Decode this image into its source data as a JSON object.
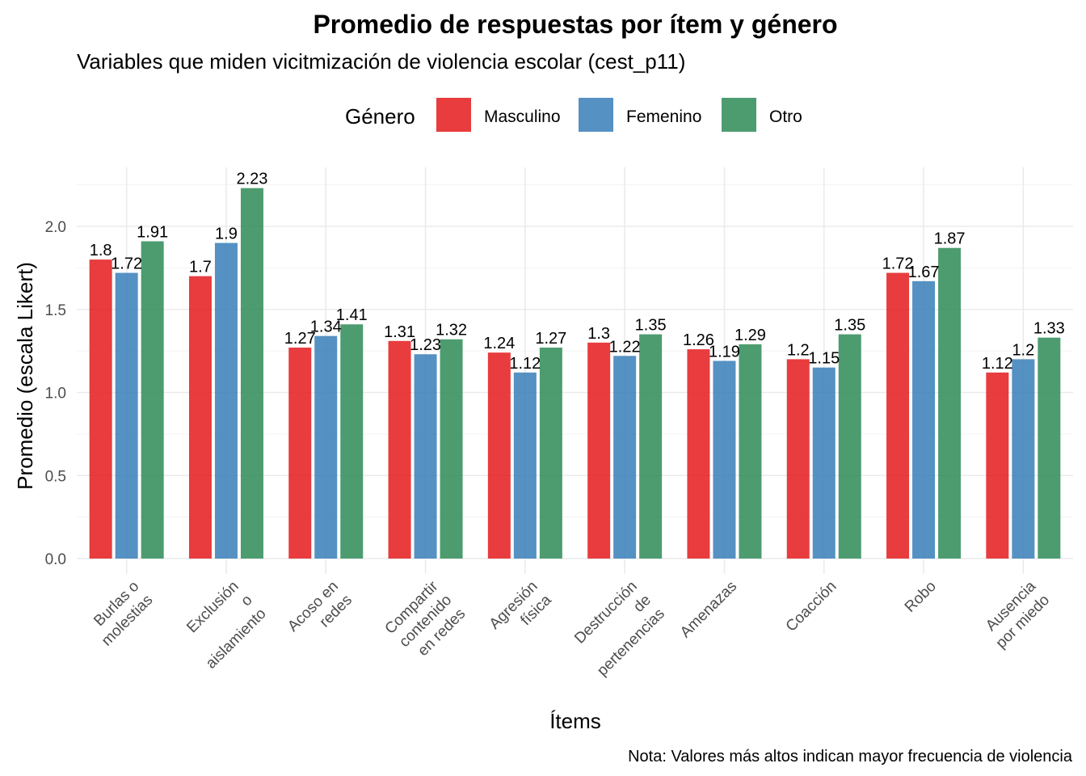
{
  "chart_data": {
    "type": "bar",
    "title": "Promedio de respuestas por ítem y género",
    "subtitle": "Variables que miden vicitmización de violencia escolar (cest_p11)",
    "xlabel": "Ítems",
    "ylabel": "Promedio (escala Likert)",
    "caption": "Nota: Valores más altos indican mayor frecuencia de violencia",
    "legend_title": "Género",
    "legend_position": "top",
    "grid": true,
    "ylim": [
      0,
      2.23
    ],
    "yticks": [
      "0.0",
      "0.5",
      "1.0",
      "1.5",
      "2.0"
    ],
    "ytick_values": [
      0,
      0.5,
      1.0,
      1.5,
      2.0
    ],
    "categories": [
      [
        "Burlas o",
        "molestias"
      ],
      [
        "Exclusión",
        "o",
        "aislamiento"
      ],
      [
        "Acoso en",
        "redes"
      ],
      [
        "Compartir",
        "contenido",
        "en redes"
      ],
      [
        "Agresión",
        "física"
      ],
      [
        "Destrucción",
        "de",
        "pertenencias"
      ],
      [
        "Amenazas"
      ],
      [
        "Coacción"
      ],
      [
        "Robo"
      ],
      [
        "Ausencia",
        "por miedo"
      ]
    ],
    "series": [
      {
        "name": "Masculino",
        "color": "#E41A1C",
        "values": [
          1.8,
          1.7,
          1.27,
          1.31,
          1.24,
          1.3,
          1.26,
          1.2,
          1.72,
          1.12
        ],
        "labels": [
          "1.8",
          "1.7",
          "1.27",
          "1.31",
          "1.24",
          "1.3",
          "1.26",
          "1.2",
          "1.72",
          "1.12"
        ]
      },
      {
        "name": "Femenino",
        "color": "#377EB8",
        "values": [
          1.72,
          1.9,
          1.34,
          1.23,
          1.12,
          1.22,
          1.19,
          1.15,
          1.67,
          1.2
        ],
        "labels": [
          "1.72",
          "1.9",
          "1.34",
          "1.23",
          "1.12",
          "1.22",
          "1.19",
          "1.15",
          "1.67",
          "1.2"
        ]
      },
      {
        "name": "Otro",
        "color": "#2E8B57",
        "values": [
          1.91,
          2.23,
          1.41,
          1.32,
          1.27,
          1.35,
          1.29,
          1.35,
          1.87,
          1.33
        ],
        "labels": [
          "1.91",
          "2.23",
          "1.41",
          "1.32",
          "1.27",
          "1.35",
          "1.29",
          "1.35",
          "1.87",
          "1.33"
        ]
      }
    ]
  }
}
